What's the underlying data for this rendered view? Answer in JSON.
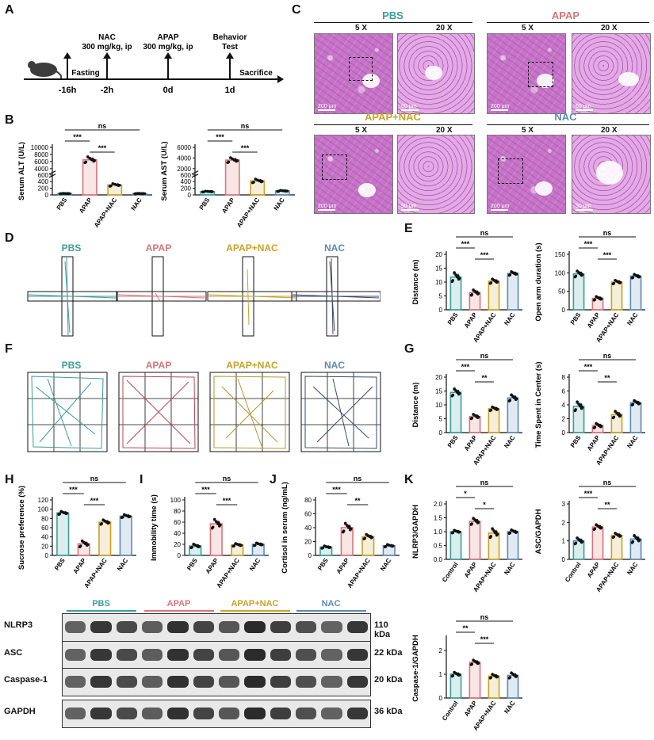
{
  "colors": {
    "PBS": "#3a9e9b",
    "APAP": "#d9747b",
    "APAP+NAC": "#c9a227",
    "NAC": "#5b8bb5",
    "Control": "#3a9e9b"
  },
  "groups": [
    "PBS",
    "APAP",
    "APAP+NAC",
    "NAC"
  ],
  "panel_letters": [
    "A",
    "B",
    "C",
    "D",
    "E",
    "F",
    "G",
    "H",
    "I",
    "J",
    "K"
  ],
  "timeline": {
    "times": [
      "-16h",
      "-2h",
      "0d",
      "1d"
    ],
    "events": [
      {
        "label": "Fasting"
      },
      {
        "label_lines": [
          "NAC",
          "300 mg/kg, ip"
        ]
      },
      {
        "label_lines": [
          "APAP",
          "300 mg/kg, ip"
        ]
      },
      {
        "label_lines": [
          "Behavior",
          "Test"
        ]
      },
      {
        "label": "Sacrifice"
      }
    ]
  },
  "histology": {
    "groups": [
      "PBS",
      "APAP",
      "APAP+NAC",
      "NAC"
    ],
    "mag_labels": [
      "5 X",
      "20 X"
    ],
    "scale_labels": [
      "200 μm",
      "50 μm"
    ]
  },
  "western": {
    "groups": [
      "PBS",
      "APAP",
      "APAP+NAC",
      "NAC"
    ],
    "proteins": [
      {
        "name": "NLRP3",
        "kda": "110 kDa"
      },
      {
        "name": "ASC",
        "kda": "22 kDa"
      },
      {
        "name": "Caspase-1",
        "kda": "20 kDa"
      },
      {
        "name": "GAPDH",
        "kda": "36 kDa"
      }
    ]
  },
  "chart_data": [
    {
      "id": "B1",
      "type": "bar",
      "ylabel": "Serum ALT (U/L)",
      "categories": [
        "PBS",
        "APAP",
        "APAP+NAC",
        "NAC"
      ],
      "values": [
        40,
        6500,
        300,
        40
      ],
      "broken_axis": true,
      "ticks": [
        "0",
        "200",
        "400",
        "600",
        "4000",
        "6000",
        "8000",
        "10000"
      ],
      "sig": [
        {
          "label": "***",
          "from": 0,
          "to": 1
        },
        {
          "label": "***",
          "from": 1,
          "to": 2
        },
        {
          "label": "ns",
          "from": 0,
          "to": 3
        }
      ]
    },
    {
      "id": "B2",
      "type": "bar",
      "ylabel": "Serum AST (U/L)",
      "categories": [
        "PBS",
        "APAP",
        "APAP+NAC",
        "NAC"
      ],
      "values": [
        100,
        3600,
        420,
        120
      ],
      "broken_axis": true,
      "ticks": [
        "0",
        "200",
        "400",
        "600",
        "2000",
        "4000",
        "6000"
      ],
      "sig": [
        {
          "label": "***",
          "from": 0,
          "to": 1
        },
        {
          "label": "***",
          "from": 1,
          "to": 2
        },
        {
          "label": "ns",
          "from": 0,
          "to": 3
        }
      ]
    },
    {
      "id": "E1",
      "type": "bar",
      "ylabel": "Distance (m)",
      "categories": [
        "PBS",
        "APAP",
        "APAP+NAC",
        "NAC"
      ],
      "values": [
        11.8,
        6.2,
        10.3,
        13.1
      ],
      "errors": [
        1.0,
        0.6,
        0.5,
        0.4
      ],
      "ylim": [
        0,
        20
      ],
      "ticks": [
        "0",
        "5",
        "10",
        "15",
        "20"
      ],
      "sig": [
        {
          "label": "***",
          "from": 0,
          "to": 1
        },
        {
          "label": "***",
          "from": 1,
          "to": 2
        },
        {
          "label": "ns",
          "from": 0,
          "to": 3
        }
      ]
    },
    {
      "id": "E2",
      "type": "bar",
      "ylabel": "Open arm duration (s)",
      "categories": [
        "PBS",
        "APAP",
        "APAP+NAC",
        "NAC"
      ],
      "values": [
        97,
        31,
        75,
        91
      ],
      "errors": [
        5,
        3,
        3,
        3
      ],
      "ylim": [
        0,
        150
      ],
      "ticks": [
        "0",
        "50",
        "100",
        "150"
      ],
      "sig": [
        {
          "label": "***",
          "from": 0,
          "to": 1
        },
        {
          "label": "***",
          "from": 1,
          "to": 2
        },
        {
          "label": "ns",
          "from": 0,
          "to": 3
        }
      ]
    },
    {
      "id": "G1",
      "type": "bar",
      "ylabel": "Distance (m)",
      "categories": [
        "PBS",
        "APAP",
        "APAP+NAC",
        "NAC"
      ],
      "values": [
        14.5,
        5.8,
        8.6,
        12.5
      ],
      "errors": [
        0.8,
        0.5,
        0.4,
        0.7
      ],
      "ylim": [
        0,
        20
      ],
      "ticks": [
        "0",
        "5",
        "10",
        "15",
        "20"
      ],
      "sig": [
        {
          "label": "***",
          "from": 0,
          "to": 1
        },
        {
          "label": "**",
          "from": 1,
          "to": 2
        },
        {
          "label": "ns",
          "from": 0,
          "to": 3
        }
      ]
    },
    {
      "id": "G2",
      "type": "bar",
      "ylabel": "Time Spent in Center (s)",
      "categories": [
        "PBS",
        "APAP",
        "APAP+NAC",
        "NAC"
      ],
      "values": [
        3.8,
        1.0,
        2.6,
        4.3
      ],
      "errors": [
        0.4,
        0.2,
        0.3,
        0.2
      ],
      "ylim": [
        0,
        8
      ],
      "ticks": [
        "0",
        "2",
        "4",
        "6",
        "8"
      ],
      "sig": [
        {
          "label": "***",
          "from": 0,
          "to": 1
        },
        {
          "label": "**",
          "from": 1,
          "to": 2
        },
        {
          "label": "ns",
          "from": 0,
          "to": 3
        }
      ]
    },
    {
      "id": "H",
      "type": "bar",
      "ylabel": "Sucrose preference (%)",
      "categories": [
        "PBS",
        "APAP",
        "APAP+NAC",
        "NAC"
      ],
      "values": [
        92,
        25,
        72,
        85
      ],
      "errors": [
        2,
        4,
        3,
        2
      ],
      "ylim": [
        0,
        120
      ],
      "ticks": [
        "0",
        "20",
        "40",
        "60",
        "80",
        "100",
        "120"
      ],
      "sig": [
        {
          "label": "***",
          "from": 0,
          "to": 1
        },
        {
          "label": "***",
          "from": 1,
          "to": 2
        },
        {
          "label": "ns",
          "from": 0,
          "to": 3
        }
      ]
    },
    {
      "id": "I",
      "type": "bar",
      "ylabel": "Immobility time (s)",
      "categories": [
        "PBS",
        "APAP",
        "APAP+NAC",
        "NAC"
      ],
      "values": [
        17,
        57,
        19,
        20
      ],
      "errors": [
        2,
        5,
        1.5,
        1.5
      ],
      "ylim": [
        0,
        100
      ],
      "ticks": [
        "0",
        "20",
        "40",
        "60",
        "80",
        "100"
      ],
      "sig": [
        {
          "label": "***",
          "from": 0,
          "to": 1
        },
        {
          "label": "***",
          "from": 1,
          "to": 2
        },
        {
          "label": "ns",
          "from": 0,
          "to": 3
        }
      ]
    },
    {
      "id": "J",
      "type": "bar",
      "ylabel": "Cortisol in serum (ng/mL)",
      "categories": [
        "PBS",
        "APAP",
        "APAP+NAC",
        "NAC"
      ],
      "values": [
        12,
        40,
        27,
        14
      ],
      "errors": [
        1,
        4,
        2,
        1
      ],
      "ylim": [
        0,
        80
      ],
      "ticks": [
        "0",
        "20",
        "40",
        "60",
        "80"
      ],
      "sig": [
        {
          "label": "***",
          "from": 0,
          "to": 1
        },
        {
          "label": "**",
          "from": 1,
          "to": 2
        },
        {
          "label": "ns",
          "from": 0,
          "to": 3
        }
      ]
    },
    {
      "id": "K1",
      "type": "bar",
      "ylabel": "NLRP3/GAPDH",
      "categories": [
        "Control",
        "APAP",
        "APAP+NAC",
        "NAC"
      ],
      "values": [
        1.0,
        1.37,
        0.95,
        1.0
      ],
      "errors": [
        0.03,
        0.07,
        0.1,
        0.04
      ],
      "ylim": [
        0,
        2.0
      ],
      "ticks": [
        "0.0",
        "0.5",
        "1.0",
        "1.5",
        "2.0"
      ],
      "sig": [
        {
          "label": "*",
          "from": 0,
          "to": 1
        },
        {
          "label": "*",
          "from": 1,
          "to": 2
        },
        {
          "label": "ns",
          "from": 0,
          "to": 3
        }
      ]
    },
    {
      "id": "K2",
      "type": "bar",
      "ylabel": "ASC/GAPDH",
      "categories": [
        "Control",
        "APAP",
        "APAP+NAC",
        "NAC"
      ],
      "values": [
        1.0,
        1.75,
        1.3,
        1.1
      ],
      "errors": [
        0.1,
        0.08,
        0.07,
        0.12
      ],
      "ylim": [
        0,
        3
      ],
      "ticks": [
        "0",
        "1",
        "2",
        "3"
      ],
      "sig": [
        {
          "label": "***",
          "from": 0,
          "to": 1
        },
        {
          "label": "**",
          "from": 1,
          "to": 2
        },
        {
          "label": "ns",
          "from": 0,
          "to": 3
        }
      ]
    },
    {
      "id": "K3",
      "type": "bar",
      "ylabel": "Caspase-1/GAPDH",
      "categories": [
        "Control",
        "APAP",
        "APAP+NAC",
        "NAC"
      ],
      "values": [
        1.0,
        1.5,
        0.92,
        0.95
      ],
      "errors": [
        0.05,
        0.06,
        0.05,
        0.07
      ],
      "ylim": [
        0,
        2.5
      ],
      "ticks": [
        "0",
        "1",
        "2"
      ],
      "sig": [
        {
          "label": "**",
          "from": 0,
          "to": 1
        },
        {
          "label": "***",
          "from": 1,
          "to": 2
        },
        {
          "label": "ns",
          "from": 0,
          "to": 3
        }
      ]
    }
  ]
}
